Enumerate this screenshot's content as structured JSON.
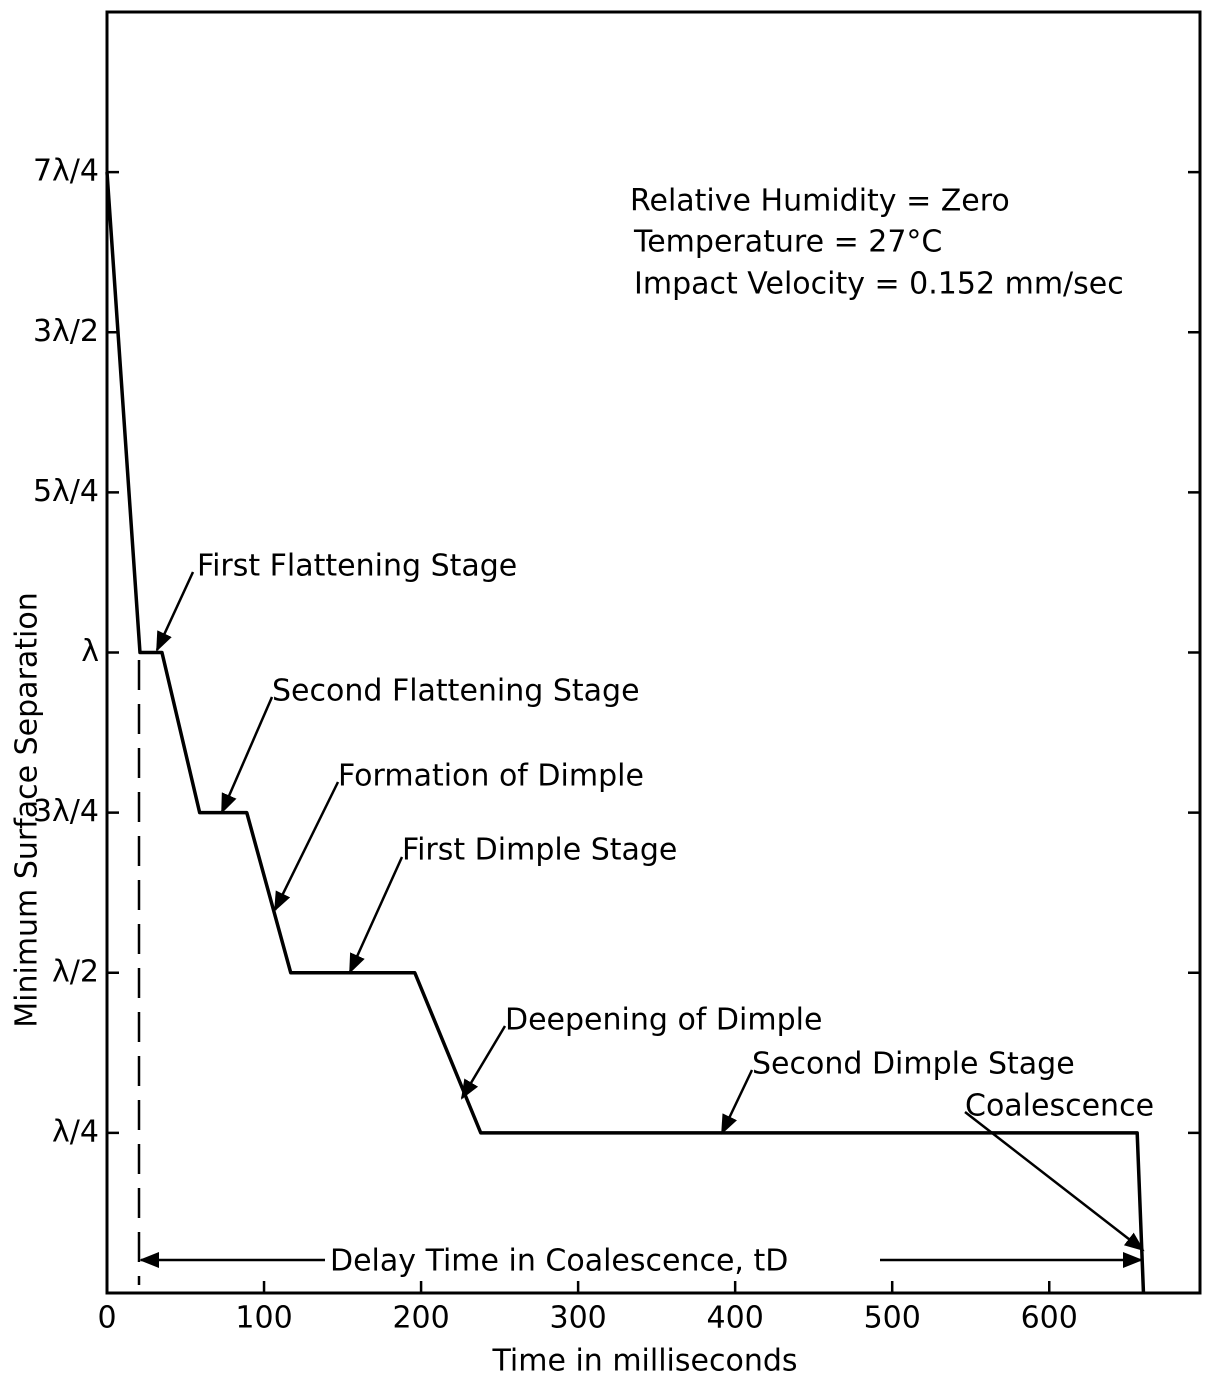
{
  "chart_data": {
    "type": "line",
    "x_label": "Time in milliseconds",
    "y_label": "Minimum Surface Separation",
    "x": [
      0,
      21,
      35,
      59,
      89,
      117,
      196,
      238,
      656,
      660
    ],
    "values": [
      1.75,
      1,
      1,
      0.75,
      0.75,
      0.5,
      0.5,
      0.25,
      0.25,
      0
    ],
    "color": "#000000",
    "xlim": [
      0,
      696
    ],
    "ylim": [
      0,
      2
    ],
    "xticks": [
      0,
      100,
      200,
      300,
      400,
      500,
      600
    ],
    "yticks": [
      {
        "value": 0.25,
        "label": "λ/4"
      },
      {
        "value": 0.5,
        "label": "λ/2"
      },
      {
        "value": 0.75,
        "label": "3λ/4"
      },
      {
        "value": 1,
        "label": "λ"
      },
      {
        "value": 1.25,
        "label": "5λ/4"
      },
      {
        "value": 1.5,
        "label": "3λ/2"
      },
      {
        "value": 1.75,
        "label": "7λ/4"
      }
    ],
    "conditions": [
      "Relative Humidity = Zero",
      "Temperature = 27°C",
      "Impact Velocity = 0.152 mm/sec"
    ],
    "annotations": [
      "First Flattening Stage",
      "Second Flattening Stage",
      "Formation of Dimple",
      "First Dimple Stage",
      "Deepening of Dimple",
      "Second Dimple Stage",
      "Coalescence"
    ],
    "delay_label": "Delay Time in Coalescence, tD"
  }
}
